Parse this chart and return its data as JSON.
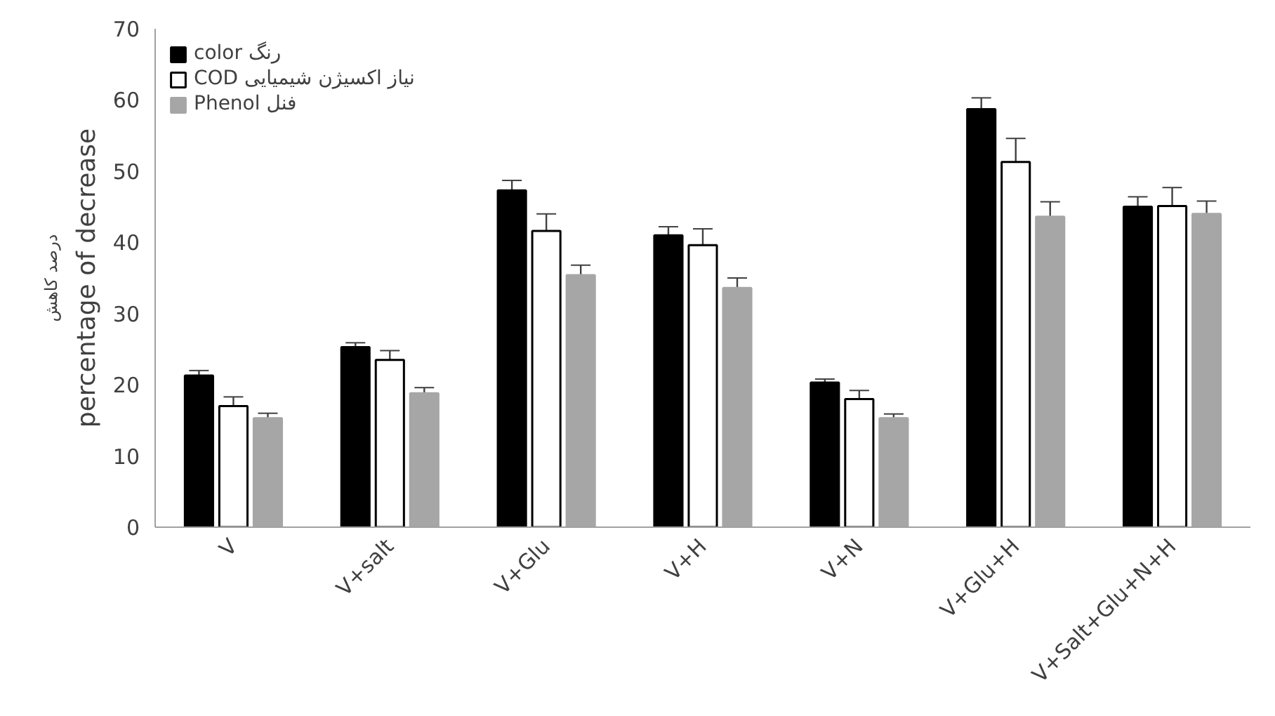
{
  "chart_data": {
    "type": "bar",
    "ylabel": "percentage of decrease",
    "annotations": [
      "درصد کاهش"
    ],
    "categories": [
      "V",
      "V+salt",
      "V+Glu",
      "V+H",
      "V+N",
      "V+Glu+H",
      "V+Salt+Glu+N+H"
    ],
    "series": [
      {
        "name": "color رنگ",
        "color": "#000000",
        "values": [
          21.3,
          25.3,
          47.3,
          41.0,
          20.3,
          58.7,
          45.0
        ],
        "errors": [
          0.7,
          0.6,
          1.4,
          1.2,
          0.5,
          1.6,
          1.4
        ]
      },
      {
        "name": "COD نیاز اکسیژن شیمیایی",
        "color": "#ffffff",
        "values": [
          17.0,
          23.5,
          41.6,
          39.6,
          18.0,
          51.3,
          45.1
        ],
        "errors": [
          1.3,
          1.3,
          2.4,
          2.3,
          1.2,
          3.3,
          2.6
        ]
      },
      {
        "name": "Phenol فنل",
        "color": "#a6a6a6",
        "values": [
          15.3,
          18.8,
          35.4,
          33.6,
          15.3,
          43.6,
          44.0
        ],
        "errors": [
          0.7,
          0.8,
          1.4,
          1.4,
          0.6,
          2.1,
          1.8
        ]
      }
    ],
    "ylim": [
      0,
      70
    ],
    "yticks": [
      0,
      10,
      20,
      30,
      40,
      50,
      60,
      70
    ],
    "grid": false,
    "legend": "top left"
  }
}
